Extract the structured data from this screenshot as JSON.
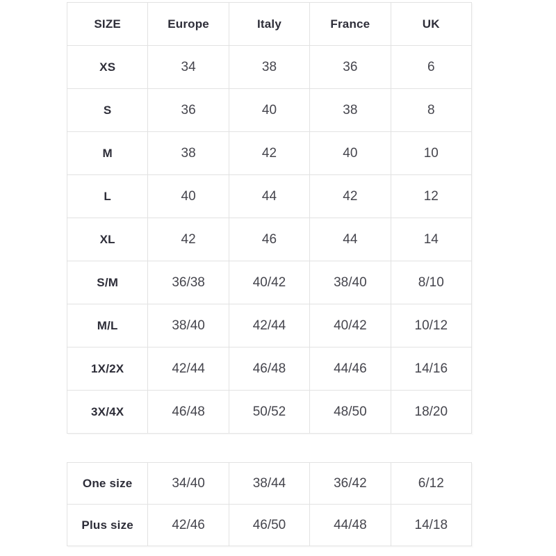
{
  "colors": {
    "background": "#ffffff",
    "table_border": "#e2e2e2",
    "header_text": "#2d2d38",
    "cell_text": "#45454d"
  },
  "size_chart": {
    "columns": [
      "SIZE",
      "Europe",
      "Italy",
      "France",
      "UK"
    ],
    "rows": [
      {
        "label": "XS",
        "values": [
          "34",
          "38",
          "36",
          "6"
        ]
      },
      {
        "label": "S",
        "values": [
          "36",
          "40",
          "38",
          "8"
        ]
      },
      {
        "label": "M",
        "values": [
          "38",
          "42",
          "40",
          "10"
        ]
      },
      {
        "label": "L",
        "values": [
          "40",
          "44",
          "42",
          "12"
        ]
      },
      {
        "label": "XL",
        "values": [
          "42",
          "46",
          "44",
          "14"
        ]
      },
      {
        "label": "S/M",
        "values": [
          "36/38",
          "40/42",
          "38/40",
          "8/10"
        ]
      },
      {
        "label": "M/L",
        "values": [
          "38/40",
          "42/44",
          "40/42",
          "10/12"
        ]
      },
      {
        "label": "1X/2X",
        "values": [
          "42/44",
          "46/48",
          "44/46",
          "14/16"
        ]
      },
      {
        "label": "3X/4X",
        "values": [
          "46/48",
          "50/52",
          "48/50",
          "18/20"
        ]
      }
    ]
  },
  "special_sizes": {
    "rows": [
      {
        "label": "One size",
        "values": [
          "34/40",
          "38/44",
          "36/42",
          "6/12"
        ]
      },
      {
        "label": "Plus size",
        "values": [
          "42/46",
          "46/50",
          "44/48",
          "14/18"
        ]
      }
    ]
  }
}
